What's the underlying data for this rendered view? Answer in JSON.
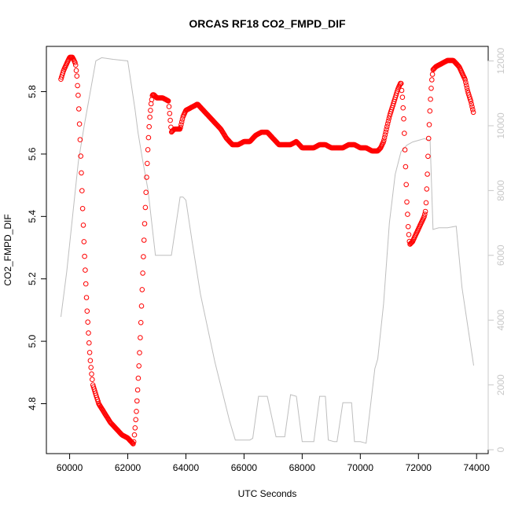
{
  "chart_data": {
    "type": "scatter",
    "title": "ORCAS RF18 CO2_FMPD_DIF",
    "xlabel": "UTC Seconds",
    "ylabel": "CO2_FMPD_DIF",
    "xlim": [
      59200,
      74400
    ],
    "ylim": [
      4.64,
      5.945
    ],
    "y2lim": [
      -120,
      12450
    ],
    "x_ticks": [
      60000,
      62000,
      64000,
      66000,
      68000,
      70000,
      72000,
      74000
    ],
    "y_ticks": [
      4.8,
      5.0,
      5.2,
      5.4,
      5.6,
      5.8
    ],
    "y2_ticks": [
      0,
      2000,
      4000,
      6000,
      8000,
      10000,
      12000
    ],
    "colors": {
      "points": "#ff0000",
      "altitude_line": "#bebebe",
      "right_axis": "#c8c8c8"
    },
    "series": [
      {
        "kind": "points",
        "x": [
          59700,
          59800,
          59900,
          60000,
          60100,
          60200,
          60250,
          60300,
          60350,
          60400,
          60450,
          60500,
          60550,
          60600,
          60650,
          60700,
          60750,
          60800,
          60900,
          61000,
          61200,
          61400,
          61600,
          61800,
          62000,
          62100,
          62200,
          62250,
          62300,
          62350,
          62400,
          62450,
          62500,
          62550,
          62600,
          62650,
          62700,
          62750,
          62800,
          62850,
          62900,
          63000,
          63200,
          63400,
          63500,
          63600,
          63800,
          63900,
          64000,
          64200,
          64400,
          64600,
          64800,
          65000,
          65200,
          65400,
          65600,
          65800,
          66000,
          66200,
          66400,
          66600,
          66800,
          67000,
          67200,
          67400,
          67600,
          67800,
          68000,
          68200,
          68400,
          68600,
          68800,
          69000,
          69200,
          69400,
          69600,
          69800,
          70000,
          70200,
          70400,
          70600,
          70700,
          70800,
          70900,
          71000,
          71100,
          71200,
          71300,
          71400,
          71450,
          71500,
          71550,
          71600,
          71650,
          71700,
          71800,
          71900,
          72000,
          72100,
          72200,
          72250,
          72300,
          72350,
          72400,
          72450,
          72500,
          72600,
          72800,
          73000,
          73200,
          73400,
          73600,
          73700,
          73800,
          73900
        ],
        "y": [
          5.84,
          5.87,
          5.89,
          5.91,
          5.91,
          5.89,
          5.85,
          5.78,
          5.67,
          5.55,
          5.42,
          5.3,
          5.2,
          5.1,
          5.02,
          4.95,
          4.9,
          4.86,
          4.83,
          4.8,
          4.77,
          4.74,
          4.72,
          4.7,
          4.69,
          4.68,
          4.67,
          4.72,
          4.78,
          4.86,
          4.95,
          5.06,
          5.18,
          5.3,
          5.42,
          5.53,
          5.63,
          5.71,
          5.76,
          5.79,
          5.79,
          5.78,
          5.78,
          5.77,
          5.67,
          5.68,
          5.68,
          5.72,
          5.74,
          5.75,
          5.76,
          5.74,
          5.72,
          5.7,
          5.68,
          5.65,
          5.63,
          5.63,
          5.64,
          5.64,
          5.66,
          5.67,
          5.67,
          5.65,
          5.63,
          5.63,
          5.63,
          5.64,
          5.62,
          5.62,
          5.62,
          5.63,
          5.63,
          5.62,
          5.62,
          5.62,
          5.63,
          5.63,
          5.62,
          5.62,
          5.61,
          5.61,
          5.62,
          5.64,
          5.68,
          5.72,
          5.75,
          5.78,
          5.81,
          5.83,
          5.78,
          5.7,
          5.58,
          5.45,
          5.36,
          5.31,
          5.32,
          5.34,
          5.36,
          5.38,
          5.4,
          5.42,
          5.52,
          5.65,
          5.75,
          5.83,
          5.87,
          5.88,
          5.89,
          5.9,
          5.9,
          5.88,
          5.84,
          5.8,
          5.77,
          5.73
        ]
      },
      {
        "kind": "altitude_line",
        "x": [
          59700,
          59900,
          60100,
          60300,
          60500,
          60700,
          60900,
          61100,
          61500,
          62000,
          62250,
          62350,
          62500,
          62700,
          62800,
          62950,
          63200,
          63350,
          63500,
          63800,
          63900,
          64000,
          64200,
          64500,
          65000,
          65500,
          65700,
          66000,
          66200,
          66300,
          66500,
          66800,
          67100,
          67400,
          67600,
          67800,
          68000,
          68200,
          68400,
          68600,
          68800,
          68900,
          69100,
          69200,
          69400,
          69700,
          69800,
          70000,
          70200,
          70500,
          70600,
          70800,
          71000,
          71200,
          71400,
          71600,
          71800,
          72000,
          72200,
          72400,
          72500,
          72700,
          73000,
          73300,
          73500,
          73700,
          73900
        ],
        "y": [
          4100,
          5500,
          7200,
          8900,
          10000,
          11000,
          12000,
          12100,
          12050,
          12000,
          10500,
          9800,
          9000,
          8000,
          7200,
          6000,
          6000,
          6000,
          6000,
          7800,
          7800,
          7700,
          6500,
          4800,
          2700,
          900,
          300,
          300,
          300,
          350,
          1650,
          1650,
          400,
          400,
          1700,
          1650,
          250,
          250,
          250,
          1650,
          1650,
          300,
          250,
          250,
          1450,
          1450,
          250,
          250,
          200,
          2500,
          2800,
          4500,
          7000,
          8500,
          9200,
          9400,
          9500,
          9550,
          9600,
          9550,
          6800,
          6850,
          6850,
          6900,
          5000,
          3800,
          2600
        ]
      }
    ]
  }
}
